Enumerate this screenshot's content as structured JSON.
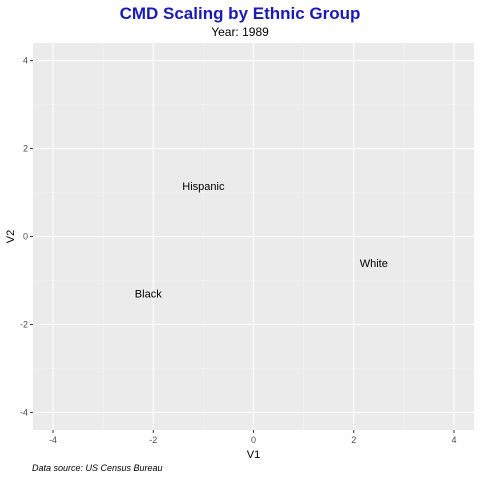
{
  "chart_data": {
    "type": "scatter",
    "title": "CMD Scaling by Ethnic Group",
    "subtitle": "Year: 1989",
    "xlabel": "V1",
    "ylabel": "V2",
    "caption": "Data source: US Census Bureau",
    "xlim": [
      -4.4,
      4.4
    ],
    "ylim": [
      -4.4,
      4.4
    ],
    "xticks": [
      -4,
      -2,
      0,
      2,
      4
    ],
    "yticks": [
      -4,
      -2,
      0,
      2,
      4
    ],
    "grid": true,
    "points": [
      {
        "label": "Hispanic",
        "x": -1.0,
        "y": 1.15
      },
      {
        "label": "White",
        "x": 2.4,
        "y": -0.6
      },
      {
        "label": "Black",
        "x": -2.1,
        "y": -1.3
      }
    ],
    "colors": {
      "title": "#1a1ab5",
      "panel": "#ebebeb",
      "grid_major": "#ffffff",
      "text": "#000000"
    }
  }
}
